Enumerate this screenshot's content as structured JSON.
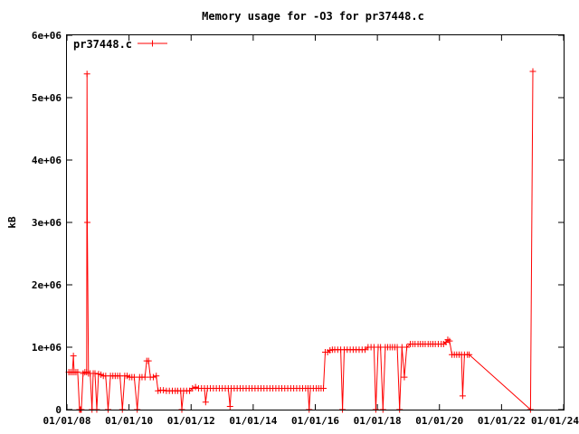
{
  "chart_data": {
    "type": "line",
    "title": "Memory usage for -O3 for pr37448.c",
    "xlabel": "",
    "ylabel": "kB",
    "x_tick_labels": [
      "01/01/08",
      "01/01/10",
      "01/01/12",
      "01/01/14",
      "01/01/16",
      "01/01/18",
      "01/01/20",
      "01/01/22",
      "01/01/24"
    ],
    "y_tick_labels": [
      "0",
      "1e+06",
      "2e+06",
      "3e+06",
      "4e+06",
      "5e+06",
      "6e+06"
    ],
    "xlim": [
      "2008-01-01",
      "2024-01-01"
    ],
    "ylim": [
      0,
      6000000
    ],
    "grid": false,
    "legend_position": "top-left",
    "series": [
      {
        "name": "pr37448.c",
        "color": "#ff0000",
        "marker": "plus",
        "points": [
          [
            "2008-01-23",
            600000
          ],
          [
            "2008-02-13",
            600000
          ],
          [
            "2008-03-05",
            600000
          ],
          [
            "2008-03-17",
            860000
          ],
          [
            "2008-03-26",
            600000
          ],
          [
            "2008-04-16",
            600000
          ],
          [
            "2008-05-07",
            600000
          ],
          [
            "2008-05-28",
            0
          ],
          [
            "2008-06-08",
            0
          ],
          [
            "2008-06-18",
            0
          ],
          [
            "2008-07-09",
            580000
          ],
          [
            "2008-07-30",
            600000
          ],
          [
            "2008-08-20",
            600000
          ],
          [
            "2008-08-24",
            5380000
          ],
          [
            "2008-08-28",
            3000000
          ],
          [
            "2008-09-10",
            580000
          ],
          [
            "2008-10-01",
            580000
          ],
          [
            "2008-10-22",
            0
          ],
          [
            "2008-11-05",
            580000
          ],
          [
            "2008-11-26",
            580000
          ],
          [
            "2008-12-17",
            0
          ],
          [
            "2009-01-07",
            570000
          ],
          [
            "2009-02-04",
            560000
          ],
          [
            "2009-03-04",
            540000
          ],
          [
            "2009-04-01",
            540000
          ],
          [
            "2009-04-29",
            0
          ],
          [
            "2009-05-27",
            540000
          ],
          [
            "2009-06-24",
            540000
          ],
          [
            "2009-07-22",
            540000
          ],
          [
            "2009-08-19",
            540000
          ],
          [
            "2009-09-16",
            540000
          ],
          [
            "2009-10-14",
            0
          ],
          [
            "2009-11-11",
            540000
          ],
          [
            "2009-12-09",
            540000
          ],
          [
            "2010-01-06",
            520000
          ],
          [
            "2010-02-03",
            520000
          ],
          [
            "2010-03-03",
            520000
          ],
          [
            "2010-04-07",
            0
          ],
          [
            "2010-05-05",
            520000
          ],
          [
            "2010-06-02",
            520000
          ],
          [
            "2010-07-07",
            520000
          ],
          [
            "2010-07-28",
            780000
          ],
          [
            "2010-08-18",
            780000
          ],
          [
            "2010-09-08",
            520000
          ],
          [
            "2010-10-13",
            520000
          ],
          [
            "2010-11-17",
            540000
          ],
          [
            "2010-12-08",
            300000
          ],
          [
            "2011-01-05",
            310000
          ],
          [
            "2011-02-09",
            310000
          ],
          [
            "2011-03-16",
            300000
          ],
          [
            "2011-04-20",
            300000
          ],
          [
            "2011-05-25",
            300000
          ],
          [
            "2011-06-29",
            300000
          ],
          [
            "2011-07-27",
            300000
          ],
          [
            "2011-08-31",
            300000
          ],
          [
            "2011-09-14",
            0
          ],
          [
            "2011-10-05",
            300000
          ],
          [
            "2011-11-09",
            300000
          ],
          [
            "2011-12-14",
            300000
          ],
          [
            "2012-01-18",
            340000
          ],
          [
            "2012-02-22",
            360000
          ],
          [
            "2012-03-28",
            340000
          ],
          [
            "2012-05-02",
            340000
          ],
          [
            "2012-06-06",
            340000
          ],
          [
            "2012-06-20",
            120000
          ],
          [
            "2012-07-11",
            340000
          ],
          [
            "2012-08-15",
            340000
          ],
          [
            "2012-09-19",
            340000
          ],
          [
            "2012-10-24",
            340000
          ],
          [
            "2012-11-28",
            340000
          ],
          [
            "2013-01-02",
            340000
          ],
          [
            "2013-02-06",
            340000
          ],
          [
            "2013-03-13",
            340000
          ],
          [
            "2013-04-03",
            50000
          ],
          [
            "2013-04-17",
            340000
          ],
          [
            "2013-05-22",
            340000
          ],
          [
            "2013-06-26",
            340000
          ],
          [
            "2013-07-31",
            340000
          ],
          [
            "2013-09-04",
            340000
          ],
          [
            "2013-10-09",
            340000
          ],
          [
            "2013-11-13",
            340000
          ],
          [
            "2013-12-18",
            340000
          ],
          [
            "2014-01-22",
            340000
          ],
          [
            "2014-02-26",
            340000
          ],
          [
            "2014-04-02",
            340000
          ],
          [
            "2014-05-07",
            340000
          ],
          [
            "2014-06-11",
            340000
          ],
          [
            "2014-07-16",
            340000
          ],
          [
            "2014-08-20",
            340000
          ],
          [
            "2014-09-24",
            340000
          ],
          [
            "2014-10-29",
            340000
          ],
          [
            "2014-12-03",
            340000
          ],
          [
            "2015-01-07",
            340000
          ],
          [
            "2015-02-11",
            340000
          ],
          [
            "2015-03-18",
            340000
          ],
          [
            "2015-04-22",
            340000
          ],
          [
            "2015-05-27",
            340000
          ],
          [
            "2015-07-01",
            340000
          ],
          [
            "2015-08-05",
            340000
          ],
          [
            "2015-09-09",
            340000
          ],
          [
            "2015-10-07",
            340000
          ],
          [
            "2015-10-21",
            0
          ],
          [
            "2015-11-04",
            340000
          ],
          [
            "2015-12-09",
            340000
          ],
          [
            "2016-01-13",
            340000
          ],
          [
            "2016-02-10",
            340000
          ],
          [
            "2016-03-09",
            340000
          ],
          [
            "2016-04-06",
            340000
          ],
          [
            "2016-04-27",
            920000
          ],
          [
            "2016-05-25",
            920000
          ],
          [
            "2016-06-22",
            950000
          ],
          [
            "2016-07-20",
            960000
          ],
          [
            "2016-08-17",
            960000
          ],
          [
            "2016-09-21",
            960000
          ],
          [
            "2016-10-26",
            960000
          ],
          [
            "2016-11-16",
            0
          ],
          [
            "2016-12-07",
            960000
          ],
          [
            "2017-01-11",
            960000
          ],
          [
            "2017-02-15",
            960000
          ],
          [
            "2017-03-22",
            960000
          ],
          [
            "2017-04-26",
            960000
          ],
          [
            "2017-05-31",
            960000
          ],
          [
            "2017-07-05",
            960000
          ],
          [
            "2017-08-09",
            960000
          ],
          [
            "2017-09-13",
            1000000
          ],
          [
            "2017-10-18",
            1000000
          ],
          [
            "2017-11-22",
            1000000
          ],
          [
            "2017-12-13",
            0
          ],
          [
            "2018-01-10",
            1000000
          ],
          [
            "2018-02-07",
            1000000
          ],
          [
            "2018-03-07",
            0
          ],
          [
            "2018-04-04",
            1000000
          ],
          [
            "2018-05-02",
            1000000
          ],
          [
            "2018-05-30",
            1000000
          ],
          [
            "2018-06-27",
            1000000
          ],
          [
            "2018-07-25",
            1000000
          ],
          [
            "2018-08-22",
            1000000
          ],
          [
            "2018-09-19",
            0
          ],
          [
            "2018-10-17",
            1000000
          ],
          [
            "2018-11-14",
            520000
          ],
          [
            "2018-12-12",
            1000000
          ],
          [
            "2019-01-23",
            1050000
          ],
          [
            "2019-02-20",
            1050000
          ],
          [
            "2019-03-20",
            1050000
          ],
          [
            "2019-04-24",
            1050000
          ],
          [
            "2019-05-22",
            1050000
          ],
          [
            "2019-06-19",
            1050000
          ],
          [
            "2019-07-17",
            1050000
          ],
          [
            "2019-08-21",
            1050000
          ],
          [
            "2019-09-18",
            1050000
          ],
          [
            "2019-10-16",
            1050000
          ],
          [
            "2019-11-13",
            1050000
          ],
          [
            "2019-12-18",
            1050000
          ],
          [
            "2020-01-22",
            1050000
          ],
          [
            "2020-02-19",
            1050000
          ],
          [
            "2020-03-18",
            1080000
          ],
          [
            "2020-04-08",
            1120000
          ],
          [
            "2020-04-29",
            1100000
          ],
          [
            "2020-05-27",
            880000
          ],
          [
            "2020-06-24",
            880000
          ],
          [
            "2020-07-22",
            880000
          ],
          [
            "2020-08-19",
            880000
          ],
          [
            "2020-09-16",
            880000
          ],
          [
            "2020-09-30",
            220000
          ],
          [
            "2020-10-21",
            880000
          ],
          [
            "2020-11-25",
            880000
          ],
          [
            "2020-12-16",
            880000
          ],
          [
            "2022-12-07",
            0
          ],
          [
            "2023-01-04",
            5420000
          ]
        ]
      }
    ]
  }
}
